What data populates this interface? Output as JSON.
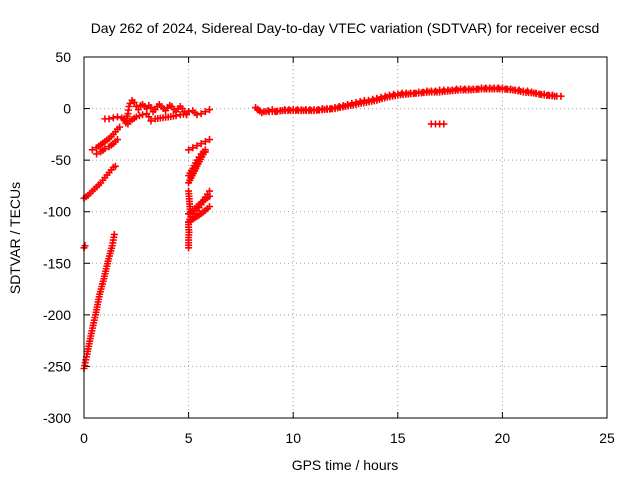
{
  "chart_data": {
    "type": "scatter",
    "title": "Day 262 of 2024, Sidereal Day-to-day VTEC variation (SDTVAR) for receiver ecsd",
    "xlabel": "GPS time / hours",
    "ylabel": "SDTVAR / TECUs",
    "xlim": [
      0,
      25
    ],
    "ylim": [
      -300,
      50
    ],
    "x_ticks": [
      0,
      5,
      10,
      15,
      20,
      25
    ],
    "y_ticks": [
      50,
      0,
      -50,
      -100,
      -150,
      -200,
      -250,
      -300
    ],
    "grid": true,
    "legend": "none",
    "marker": "plus",
    "series_color": "#ff0000",
    "segments": [
      {
        "name": "ramp-steep",
        "points": [
          [
            0.0,
            -252
          ],
          [
            0.15,
            -238
          ],
          [
            0.35,
            -218
          ],
          [
            0.55,
            -200
          ],
          [
            0.75,
            -180
          ],
          [
            0.95,
            -165
          ],
          [
            1.15,
            -148
          ],
          [
            1.35,
            -133
          ],
          [
            1.45,
            -122
          ]
        ]
      },
      {
        "name": "isolated-early",
        "points": [
          [
            0.0,
            -135
          ],
          [
            0.05,
            -133
          ]
        ]
      },
      {
        "name": "ramp-lower",
        "points": [
          [
            0.0,
            -87
          ],
          [
            0.2,
            -84
          ],
          [
            0.4,
            -80
          ],
          [
            0.6,
            -76
          ],
          [
            0.8,
            -72
          ],
          [
            1.0,
            -67
          ],
          [
            1.2,
            -62
          ],
          [
            1.4,
            -57
          ],
          [
            1.5,
            -56
          ]
        ]
      },
      {
        "name": "ramp-upper",
        "points": [
          [
            0.4,
            -40
          ],
          [
            0.6,
            -38
          ],
          [
            0.8,
            -35
          ],
          [
            1.0,
            -32
          ],
          [
            1.2,
            -29
          ],
          [
            1.4,
            -25
          ],
          [
            1.6,
            -20
          ],
          [
            1.7,
            -18
          ]
        ]
      },
      {
        "name": "ramp-upper-b",
        "points": [
          [
            0.6,
            -44
          ],
          [
            0.8,
            -42
          ],
          [
            1.0,
            -39
          ],
          [
            1.2,
            -37
          ],
          [
            1.4,
            -34
          ],
          [
            1.6,
            -30
          ]
        ]
      },
      {
        "name": "cluster-early",
        "points": [
          [
            1.0,
            -10
          ],
          [
            1.2,
            -10
          ],
          [
            1.4,
            -9
          ],
          [
            1.6,
            -8
          ],
          [
            1.8,
            -9
          ],
          [
            2.0,
            -12
          ],
          [
            2.1,
            -5
          ],
          [
            2.15,
            2
          ],
          [
            2.2,
            5
          ],
          [
            2.3,
            8
          ],
          [
            2.4,
            6
          ],
          [
            2.5,
            2
          ],
          [
            2.6,
            -1
          ],
          [
            2.7,
            3
          ],
          [
            2.8,
            4
          ],
          [
            2.9,
            2
          ],
          [
            3.0,
            0
          ],
          [
            3.1,
            3
          ],
          [
            3.2,
            1
          ],
          [
            3.3,
            -3
          ],
          [
            3.4,
            -1
          ],
          [
            3.5,
            2
          ],
          [
            3.6,
            4
          ],
          [
            3.7,
            2
          ],
          [
            3.8,
            0
          ],
          [
            3.9,
            -2
          ],
          [
            4.0,
            1
          ],
          [
            4.1,
            3
          ],
          [
            4.2,
            2
          ],
          [
            4.3,
            -1
          ],
          [
            4.4,
            -3
          ],
          [
            4.5,
            0
          ],
          [
            4.6,
            2
          ],
          [
            4.7,
            0
          ],
          [
            4.8,
            -3
          ],
          [
            4.9,
            -6
          ],
          [
            5.0,
            -3
          ]
        ]
      },
      {
        "name": "cluster-early-dip",
        "points": [
          [
            1.9,
            -10
          ],
          [
            2.0,
            -14
          ],
          [
            2.1,
            -15
          ],
          [
            2.2,
            -12
          ],
          [
            2.5,
            -8
          ],
          [
            2.8,
            -6
          ],
          [
            3.0,
            -5
          ],
          [
            3.1,
            -8
          ],
          [
            3.2,
            -12
          ],
          [
            3.4,
            -10
          ],
          [
            4.4,
            -7
          ],
          [
            4.6,
            -6
          ],
          [
            4.9,
            -5
          ]
        ]
      },
      {
        "name": "after5-upper",
        "points": [
          [
            5.0,
            -40
          ],
          [
            5.2,
            -38
          ],
          [
            5.4,
            -36
          ],
          [
            5.6,
            -34
          ],
          [
            5.8,
            -32
          ],
          [
            6.0,
            -30
          ]
        ]
      },
      {
        "name": "after5-up",
        "points": [
          [
            5.0,
            -65
          ],
          [
            5.2,
            -58
          ],
          [
            5.4,
            -50
          ],
          [
            5.6,
            -44
          ],
          [
            5.8,
            -40
          ],
          [
            5.0,
            -72
          ],
          [
            5.2,
            -62
          ],
          [
            5.4,
            -54
          ],
          [
            5.6,
            -47
          ],
          [
            5.8,
            -42
          ]
        ]
      },
      {
        "name": "after5-mid",
        "points": [
          [
            5.0,
            -110
          ],
          [
            5.2,
            -105
          ],
          [
            5.4,
            -99
          ],
          [
            5.6,
            -93
          ],
          [
            5.8,
            -86
          ],
          [
            6.0,
            -80
          ]
        ]
      },
      {
        "name": "after5-low",
        "points": [
          [
            5.0,
            -102
          ],
          [
            5.2,
            -99
          ],
          [
            5.4,
            -95
          ],
          [
            5.6,
            -91
          ],
          [
            5.8,
            -88
          ],
          [
            6.0,
            -85
          ]
        ]
      },
      {
        "name": "after5-low-b",
        "points": [
          [
            5.0,
            -110
          ],
          [
            5.3,
            -106
          ],
          [
            5.6,
            -102
          ],
          [
            5.9,
            -97
          ],
          [
            6.0,
            -95
          ]
        ]
      },
      {
        "name": "vertical-drop",
        "points": [
          [
            5.0,
            -80
          ],
          [
            5.02,
            -85
          ],
          [
            5.04,
            -90
          ],
          [
            5.06,
            -95
          ],
          [
            5.08,
            -100
          ],
          [
            5.1,
            -105
          ],
          [
            5.0,
            -110
          ],
          [
            5.0,
            -115
          ],
          [
            5.02,
            -120
          ],
          [
            5.0,
            -125
          ],
          [
            5.0,
            -130
          ],
          [
            5.0,
            -135
          ]
        ]
      },
      {
        "name": "short-rise",
        "points": [
          [
            5.0,
            -3
          ],
          [
            5.2,
            -2
          ],
          [
            5.4,
            -6
          ],
          [
            5.6,
            -5
          ],
          [
            5.8,
            -3
          ],
          [
            6.0,
            -1
          ]
        ]
      },
      {
        "name": "main-trend",
        "points": [
          [
            8.2,
            1
          ],
          [
            8.4,
            -2
          ],
          [
            8.6,
            -3
          ],
          [
            8.8,
            -2
          ],
          [
            9.0,
            -1
          ],
          [
            9.2,
            -3
          ],
          [
            9.4,
            -2
          ],
          [
            9.6,
            -1
          ],
          [
            9.8,
            -1
          ],
          [
            10.0,
            -1
          ],
          [
            10.2,
            -1
          ],
          [
            10.4,
            -1
          ],
          [
            10.6,
            -1
          ],
          [
            10.8,
            -1
          ],
          [
            11.0,
            -1
          ],
          [
            11.2,
            -1
          ],
          [
            11.4,
            0
          ],
          [
            11.6,
            0
          ],
          [
            11.8,
            0
          ],
          [
            12.0,
            1
          ],
          [
            12.2,
            2
          ],
          [
            12.4,
            3
          ],
          [
            12.6,
            4
          ],
          [
            12.8,
            5
          ],
          [
            13.0,
            6
          ],
          [
            13.2,
            7
          ],
          [
            13.4,
            8
          ],
          [
            13.6,
            8
          ],
          [
            13.8,
            9
          ],
          [
            14.0,
            10
          ],
          [
            14.2,
            11
          ],
          [
            14.4,
            12
          ],
          [
            14.6,
            13
          ],
          [
            14.8,
            14
          ],
          [
            15.0,
            14
          ],
          [
            15.2,
            15
          ],
          [
            15.4,
            15
          ],
          [
            15.6,
            15
          ],
          [
            15.8,
            15
          ],
          [
            16.0,
            16
          ],
          [
            16.2,
            16
          ],
          [
            16.4,
            17
          ],
          [
            16.6,
            17
          ],
          [
            16.8,
            17
          ],
          [
            17.0,
            18
          ],
          [
            17.2,
            18
          ],
          [
            17.4,
            18
          ],
          [
            17.6,
            18
          ],
          [
            17.8,
            19
          ],
          [
            18.0,
            19
          ],
          [
            18.2,
            19
          ],
          [
            18.4,
            19
          ],
          [
            18.6,
            19
          ],
          [
            18.8,
            19
          ],
          [
            19.0,
            20
          ],
          [
            19.2,
            20
          ],
          [
            19.4,
            20
          ],
          [
            19.6,
            20
          ],
          [
            19.8,
            20
          ],
          [
            20.0,
            20
          ],
          [
            20.2,
            19
          ],
          [
            20.4,
            19
          ],
          [
            20.6,
            18
          ],
          [
            20.8,
            18
          ],
          [
            21.0,
            17
          ],
          [
            21.2,
            17
          ],
          [
            21.4,
            16
          ],
          [
            21.6,
            15
          ],
          [
            21.8,
            14
          ],
          [
            22.0,
            14
          ],
          [
            22.2,
            13
          ],
          [
            22.4,
            13
          ],
          [
            22.6,
            12
          ],
          [
            22.8,
            12
          ]
        ]
      },
      {
        "name": "main-trend-b",
        "points": [
          [
            8.3,
            -1
          ],
          [
            8.5,
            -4
          ],
          [
            8.7,
            -3
          ],
          [
            9.0,
            -3
          ],
          [
            9.5,
            -2
          ],
          [
            10.0,
            -2
          ],
          [
            10.5,
            -2
          ],
          [
            11.0,
            -2
          ],
          [
            11.5,
            -1
          ],
          [
            12.0,
            0
          ],
          [
            12.5,
            2
          ],
          [
            13.0,
            4
          ],
          [
            13.5,
            6
          ],
          [
            14.0,
            8
          ],
          [
            14.5,
            11
          ],
          [
            15.0,
            13
          ],
          [
            15.5,
            14
          ],
          [
            16.0,
            15
          ],
          [
            16.5,
            16
          ],
          [
            17.0,
            16
          ],
          [
            17.5,
            17
          ],
          [
            18.0,
            18
          ],
          [
            18.5,
            18
          ],
          [
            19.0,
            19
          ],
          [
            19.5,
            19
          ],
          [
            20.0,
            19
          ],
          [
            20.5,
            18
          ],
          [
            21.0,
            16
          ],
          [
            21.5,
            15
          ],
          [
            22.0,
            13
          ],
          [
            22.5,
            12
          ]
        ]
      },
      {
        "name": "isolated-17h",
        "points": [
          [
            16.6,
            -15
          ],
          [
            16.8,
            -15
          ],
          [
            17.0,
            -15
          ],
          [
            17.2,
            -15
          ]
        ]
      }
    ]
  }
}
